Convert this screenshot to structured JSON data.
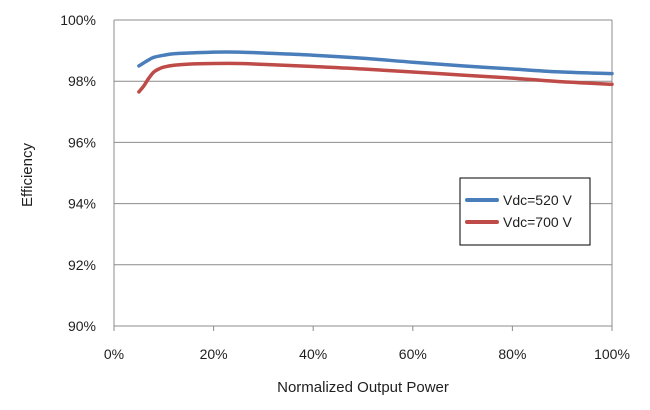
{
  "chart_data": {
    "type": "line",
    "xlabel": "Normalized Output Power",
    "ylabel": "Efficiency",
    "xlim": [
      0,
      100
    ],
    "ylim": [
      90,
      100
    ],
    "x_ticks": [
      "0%",
      "20%",
      "40%",
      "60%",
      "80%",
      "100%"
    ],
    "y_ticks": [
      "90%",
      "92%",
      "94%",
      "96%",
      "98%",
      "100%"
    ],
    "grid": "horizontal",
    "legend_position": "right",
    "series": [
      {
        "name": "Vdc=520 V",
        "color": "#4a7ebb",
        "x": [
          5,
          6,
          7,
          8,
          10,
          12,
          15,
          20,
          25,
          30,
          40,
          50,
          60,
          70,
          80,
          90,
          100
        ],
        "y": [
          98.5,
          98.6,
          98.7,
          98.78,
          98.85,
          98.9,
          98.92,
          98.95,
          98.95,
          98.92,
          98.85,
          98.75,
          98.62,
          98.5,
          98.4,
          98.3,
          98.25
        ]
      },
      {
        "name": "Vdc=700 V",
        "color": "#be4b48",
        "x": [
          5,
          6,
          7,
          8,
          9,
          10,
          12,
          15,
          20,
          25,
          30,
          40,
          50,
          60,
          70,
          80,
          90,
          100
        ],
        "y": [
          97.65,
          97.85,
          98.1,
          98.3,
          98.4,
          98.46,
          98.52,
          98.56,
          98.58,
          98.58,
          98.55,
          98.48,
          98.4,
          98.3,
          98.2,
          98.1,
          97.98,
          97.9
        ]
      }
    ]
  }
}
